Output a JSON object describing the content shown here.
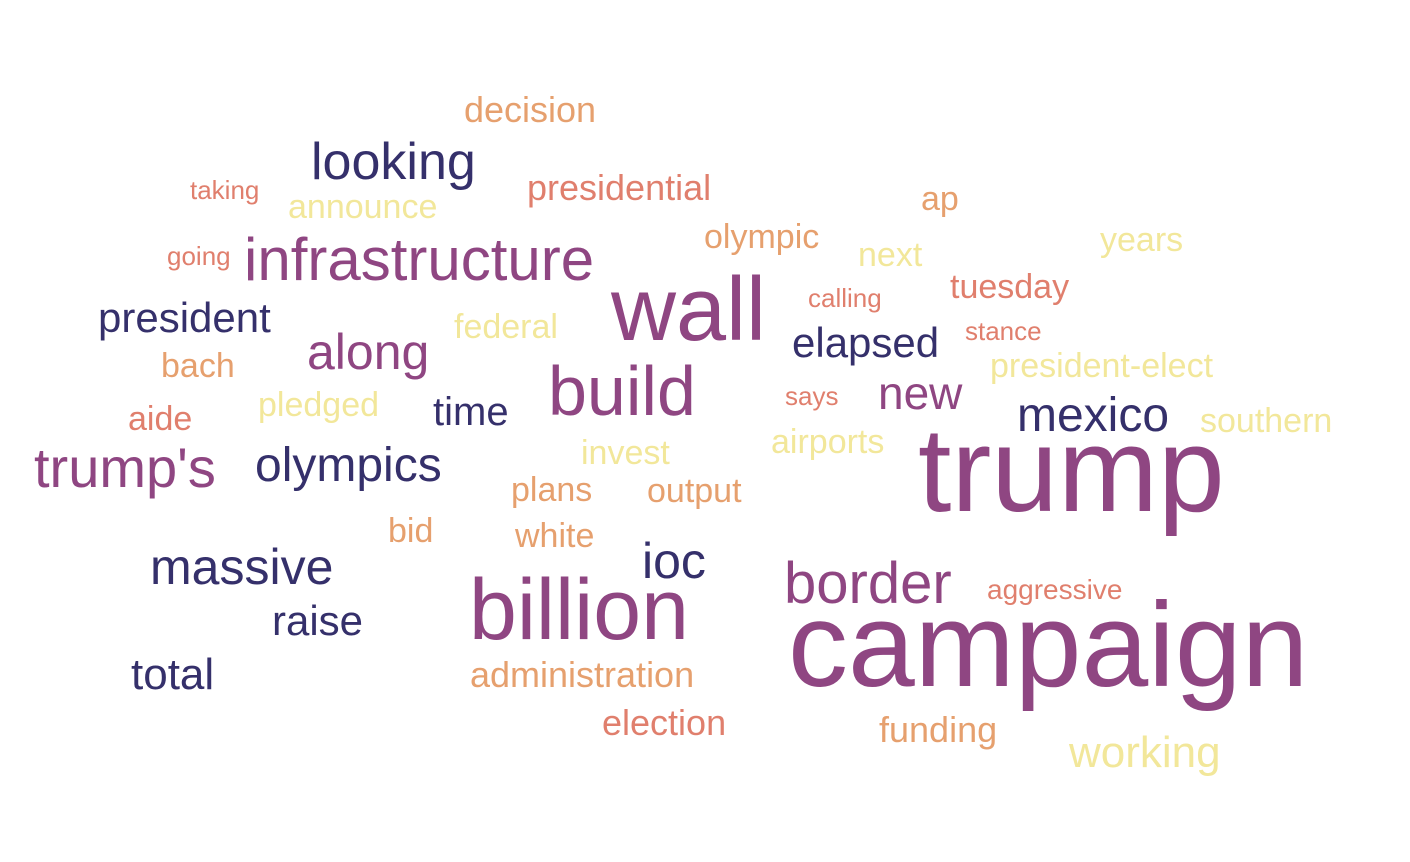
{
  "wordcloud": {
    "decision": "decision",
    "looking": "looking",
    "taking": "taking",
    "announce": "announce",
    "presidential": "presidential",
    "ap": "ap",
    "olympic": "olympic",
    "years": "years",
    "going": "going",
    "infrastructure": "infrastructure",
    "next": "next",
    "tuesday": "tuesday",
    "calling": "calling",
    "wall": "wall",
    "president": "president",
    "federal": "federal",
    "stance": "stance",
    "along": "along",
    "elapsed": "elapsed",
    "bach": "bach",
    "president_elect": "president-elect",
    "build": "build",
    "new": "new",
    "says": "says",
    "pledged": "pledged",
    "time": "time",
    "aide": "aide",
    "mexico": "mexico",
    "southern": "southern",
    "airports": "airports",
    "trumps": "trump's",
    "olympics": "olympics",
    "invest": "invest",
    "trump": "trump",
    "plans": "plans",
    "output": "output",
    "bid": "bid",
    "white": "white",
    "massive": "massive",
    "ioc": "ioc",
    "border": "border",
    "aggressive": "aggressive",
    "billion": "billion",
    "raise": "raise",
    "campaign": "campaign",
    "total": "total",
    "administration": "administration",
    "election": "election",
    "funding": "funding",
    "working": "working"
  },
  "colors": {
    "dark_indigo": "#35306b",
    "plum": "#8f4682",
    "salmon": "#e07f6d",
    "orange_tan": "#e6a06e",
    "pale_yellow": "#f2e79a"
  }
}
